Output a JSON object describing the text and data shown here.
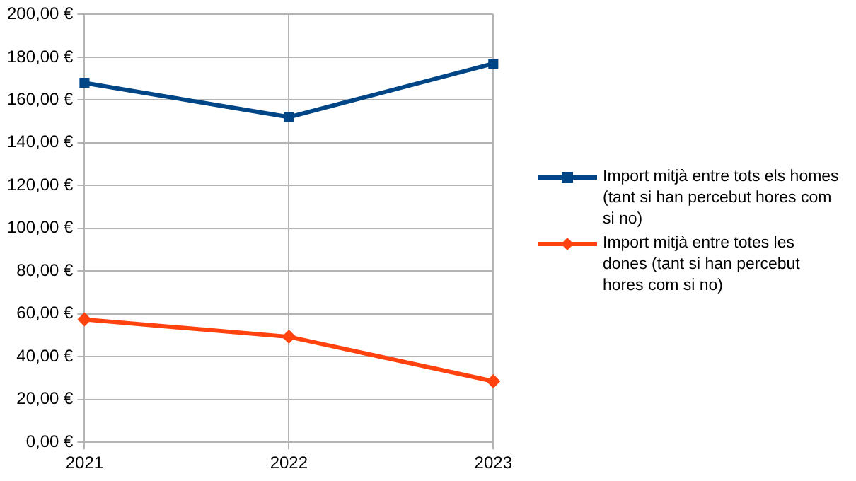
{
  "chart_data": {
    "type": "line",
    "categories": [
      "2021",
      "2022",
      "2023"
    ],
    "series": [
      {
        "name": "Import mitjà entre tots els homes (tant si han percebut hores com si no)",
        "color": "#004586",
        "values": [
          168,
          152,
          177
        ],
        "marker": "square"
      },
      {
        "name": "Import mitjà entre totes les dones (tant si han percebut hores com si no)",
        "color": "#ff420e",
        "values": [
          57.4,
          49.3,
          28.5
        ],
        "marker": "diamond"
      }
    ],
    "ylim": [
      0,
      200
    ],
    "yticks": [
      {
        "value": 0,
        "label": "0,00 €"
      },
      {
        "value": 20,
        "label": "20,00 €"
      },
      {
        "value": 40,
        "label": "40,00 €"
      },
      {
        "value": 60,
        "label": "60,00 €"
      },
      {
        "value": 80,
        "label": "80,00 €"
      },
      {
        "value": 100,
        "label": "100,00 €"
      },
      {
        "value": 120,
        "label": "120,00 €"
      },
      {
        "value": 140,
        "label": "140,00 €"
      },
      {
        "value": 160,
        "label": "160,00 €"
      },
      {
        "value": 180,
        "label": "180,00 €"
      },
      {
        "value": 200,
        "label": "200,00 €"
      }
    ],
    "grid": true,
    "legend": "right",
    "line_style": "solid"
  }
}
